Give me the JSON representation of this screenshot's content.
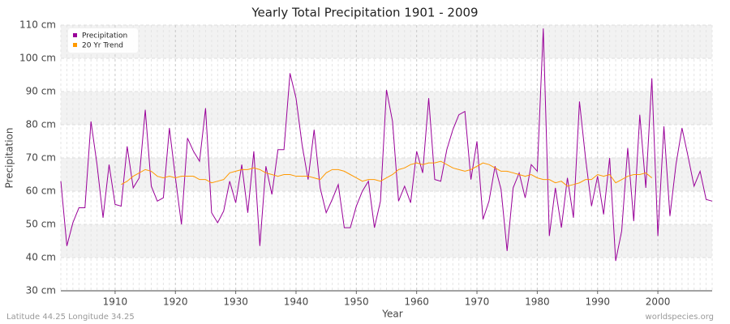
{
  "chart_data": {
    "type": "line",
    "title": "Yearly Total Precipitation 1901 - 2009",
    "x_label": "Year",
    "y_label": "Precipitation",
    "footer_left": "Latitude 44.25 Longitude 34.25",
    "footer_right": "worldspecies.org",
    "x": [
      1901,
      1902,
      1903,
      1904,
      1905,
      1906,
      1907,
      1908,
      1909,
      1910,
      1911,
      1912,
      1913,
      1914,
      1915,
      1916,
      1917,
      1918,
      1919,
      1920,
      1921,
      1922,
      1923,
      1924,
      1925,
      1926,
      1927,
      1928,
      1929,
      1930,
      1931,
      1932,
      1933,
      1934,
      1935,
      1936,
      1937,
      1938,
      1939,
      1940,
      1941,
      1942,
      1943,
      1944,
      1945,
      1946,
      1947,
      1948,
      1949,
      1950,
      1951,
      1952,
      1953,
      1954,
      1955,
      1956,
      1957,
      1958,
      1959,
      1960,
      1961,
      1962,
      1963,
      1964,
      1965,
      1966,
      1967,
      1968,
      1969,
      1970,
      1971,
      1972,
      1973,
      1974,
      1975,
      1976,
      1977,
      1978,
      1979,
      1980,
      1981,
      1982,
      1983,
      1984,
      1985,
      1986,
      1987,
      1988,
      1989,
      1990,
      1991,
      1992,
      1993,
      1994,
      1995,
      1996,
      1997,
      1998,
      1999,
      2000,
      2001,
      2002,
      2003,
      2004,
      2005,
      2006,
      2007,
      2008,
      2009
    ],
    "series": [
      {
        "name": "Precipitation",
        "color": "#990099",
        "values": [
          63,
          43.5,
          50.5,
          55,
          55,
          81,
          68,
          52,
          68,
          56,
          55.5,
          73.5,
          61,
          64,
          84.5,
          61.5,
          57,
          58,
          79,
          64,
          50,
          76,
          72,
          69,
          85,
          53.5,
          50.5,
          54,
          63,
          56.5,
          68,
          53.5,
          72,
          43.5,
          67.5,
          59,
          72.5,
          72.5,
          95.5,
          88,
          74,
          63.5,
          78.5,
          61,
          53.5,
          57.5,
          62,
          49,
          49,
          55.5,
          60,
          63,
          49,
          57,
          90.5,
          81,
          57,
          61.5,
          56.5,
          72,
          65.5,
          88,
          63.5,
          63,
          72.5,
          78.5,
          83,
          84,
          63.5,
          75,
          51.5,
          57,
          67.5,
          60.5,
          42,
          61,
          65.5,
          58,
          68,
          66,
          109,
          46.5,
          61,
          49,
          64,
          52,
          87,
          70,
          55.5,
          64.5,
          53,
          70,
          39,
          48,
          73,
          51,
          83,
          61,
          94,
          46.5,
          79.5,
          52.5,
          68,
          79,
          70.5,
          61.5,
          66,
          57.5,
          57
        ]
      },
      {
        "name": "20 Yr Trend",
        "color": "#ff9900",
        "values": [
          null,
          null,
          null,
          null,
          null,
          null,
          null,
          null,
          null,
          null,
          62,
          63,
          64.5,
          65.5,
          66.5,
          66,
          64.5,
          64,
          64.5,
          64,
          64.5,
          64.5,
          64.5,
          63.5,
          63.5,
          62.5,
          63,
          63.5,
          65.5,
          66,
          66.5,
          66.5,
          67,
          66.5,
          65.5,
          65,
          64.5,
          65,
          65,
          64.5,
          64.5,
          64.5,
          64,
          63.5,
          65.5,
          66.5,
          66.5,
          66,
          65,
          64,
          63,
          63.5,
          63.5,
          63,
          64,
          65,
          66.5,
          67,
          68,
          68.5,
          68,
          68.5,
          68.5,
          69,
          68,
          67,
          66.5,
          66,
          66.5,
          67.5,
          68.5,
          68,
          67,
          66,
          66,
          65.5,
          65,
          64.5,
          65,
          64,
          63.5,
          63.5,
          62.5,
          63,
          61.5,
          62,
          62.5,
          63.5,
          63.5,
          65,
          64.5,
          65,
          62.5,
          63.5,
          64.5,
          65,
          65,
          65.5,
          64,
          null,
          null,
          null,
          null,
          null,
          null,
          null,
          null,
          null,
          null
        ]
      }
    ],
    "xlim": [
      1901,
      2009
    ],
    "xticks": [
      1910,
      1920,
      1930,
      1940,
      1950,
      1960,
      1970,
      1980,
      1990,
      2000
    ],
    "ylim": [
      30,
      110
    ],
    "yticks": [
      {
        "value": 30,
        "label": "30 cm"
      },
      {
        "value": 40,
        "label": "40 cm"
      },
      {
        "value": 50,
        "label": "50 cm"
      },
      {
        "value": 60,
        "label": "60 cm"
      },
      {
        "value": 70,
        "label": "70 cm"
      },
      {
        "value": 80,
        "label": "80 cm"
      },
      {
        "value": 90,
        "label": "90 cm"
      },
      {
        "value": 100,
        "label": "100 cm"
      },
      {
        "value": 110,
        "label": "110 cm"
      }
    ],
    "grid": true,
    "legend": "top-left"
  }
}
